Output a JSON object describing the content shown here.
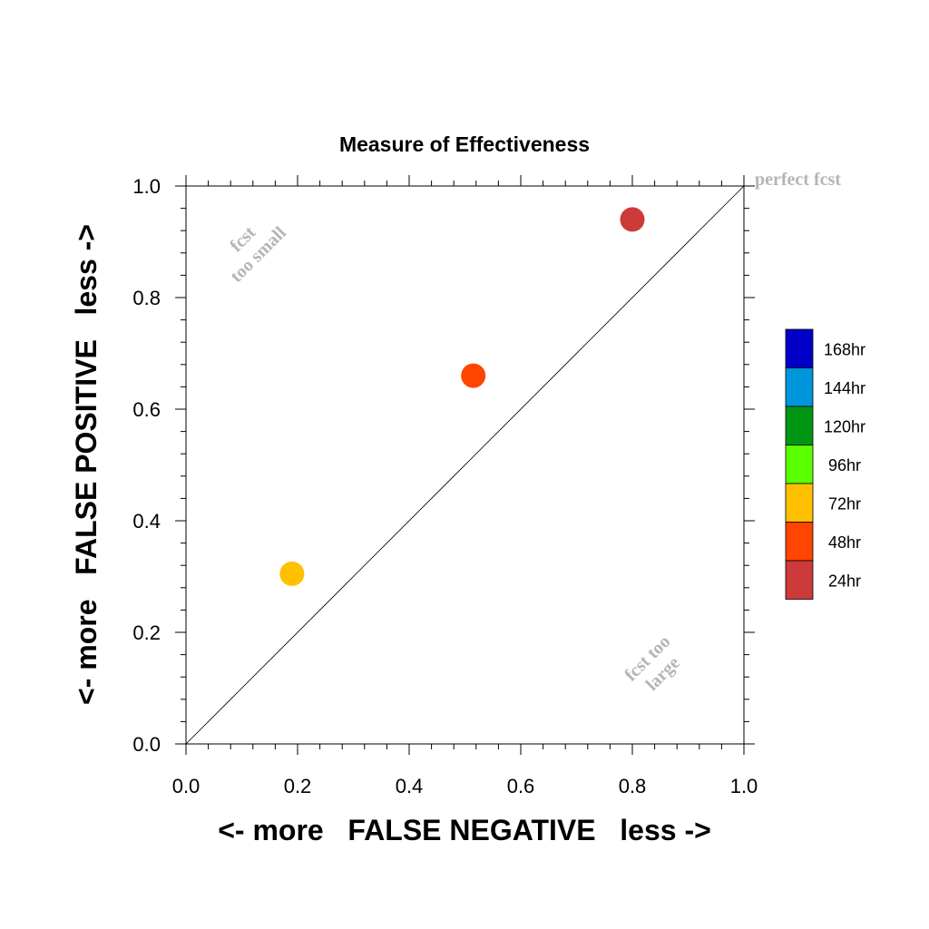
{
  "chart_data": {
    "type": "scatter",
    "title": "Measure of Effectiveness",
    "xlabel": "<- more   FALSE NEGATIVE   less ->",
    "ylabel": "<- more   FALSE POSITIVE   less ->",
    "xlim": [
      0,
      1
    ],
    "ylim": [
      0,
      1
    ],
    "xticks": [
      "0.0",
      "0.2",
      "0.4",
      "0.6",
      "0.8",
      "1.0"
    ],
    "yticks": [
      "0.0",
      "0.2",
      "0.4",
      "0.6",
      "0.8",
      "1.0"
    ],
    "grid": false,
    "points": [
      {
        "x": 0.8,
        "y": 0.94,
        "label": "24hr",
        "color": "#cc3a3a"
      },
      {
        "x": 0.515,
        "y": 0.66,
        "label": "48hr",
        "color": "#ff4500"
      },
      {
        "x": 0.19,
        "y": 0.305,
        "label": "72hr",
        "color": "#ffc000"
      }
    ],
    "reference_line": {
      "from": [
        0,
        0
      ],
      "to": [
        1,
        1
      ]
    },
    "annotations": {
      "perfect": "perfect fcst",
      "too_small": [
        "fcst",
        "too small"
      ],
      "too_large": [
        "fcst too",
        "large"
      ]
    },
    "legend": {
      "placement": "right",
      "entries": [
        {
          "label": "168hr",
          "color": "#0000c8"
        },
        {
          "label": "144hr",
          "color": "#0096dc"
        },
        {
          "label": "120hr",
          "color": "#009614"
        },
        {
          "label": "96hr",
          "color": "#5aff00"
        },
        {
          "label": "72hr",
          "color": "#ffc000"
        },
        {
          "label": "48hr",
          "color": "#ff4500"
        },
        {
          "label": "24hr",
          "color": "#cc3a3a"
        }
      ]
    }
  }
}
